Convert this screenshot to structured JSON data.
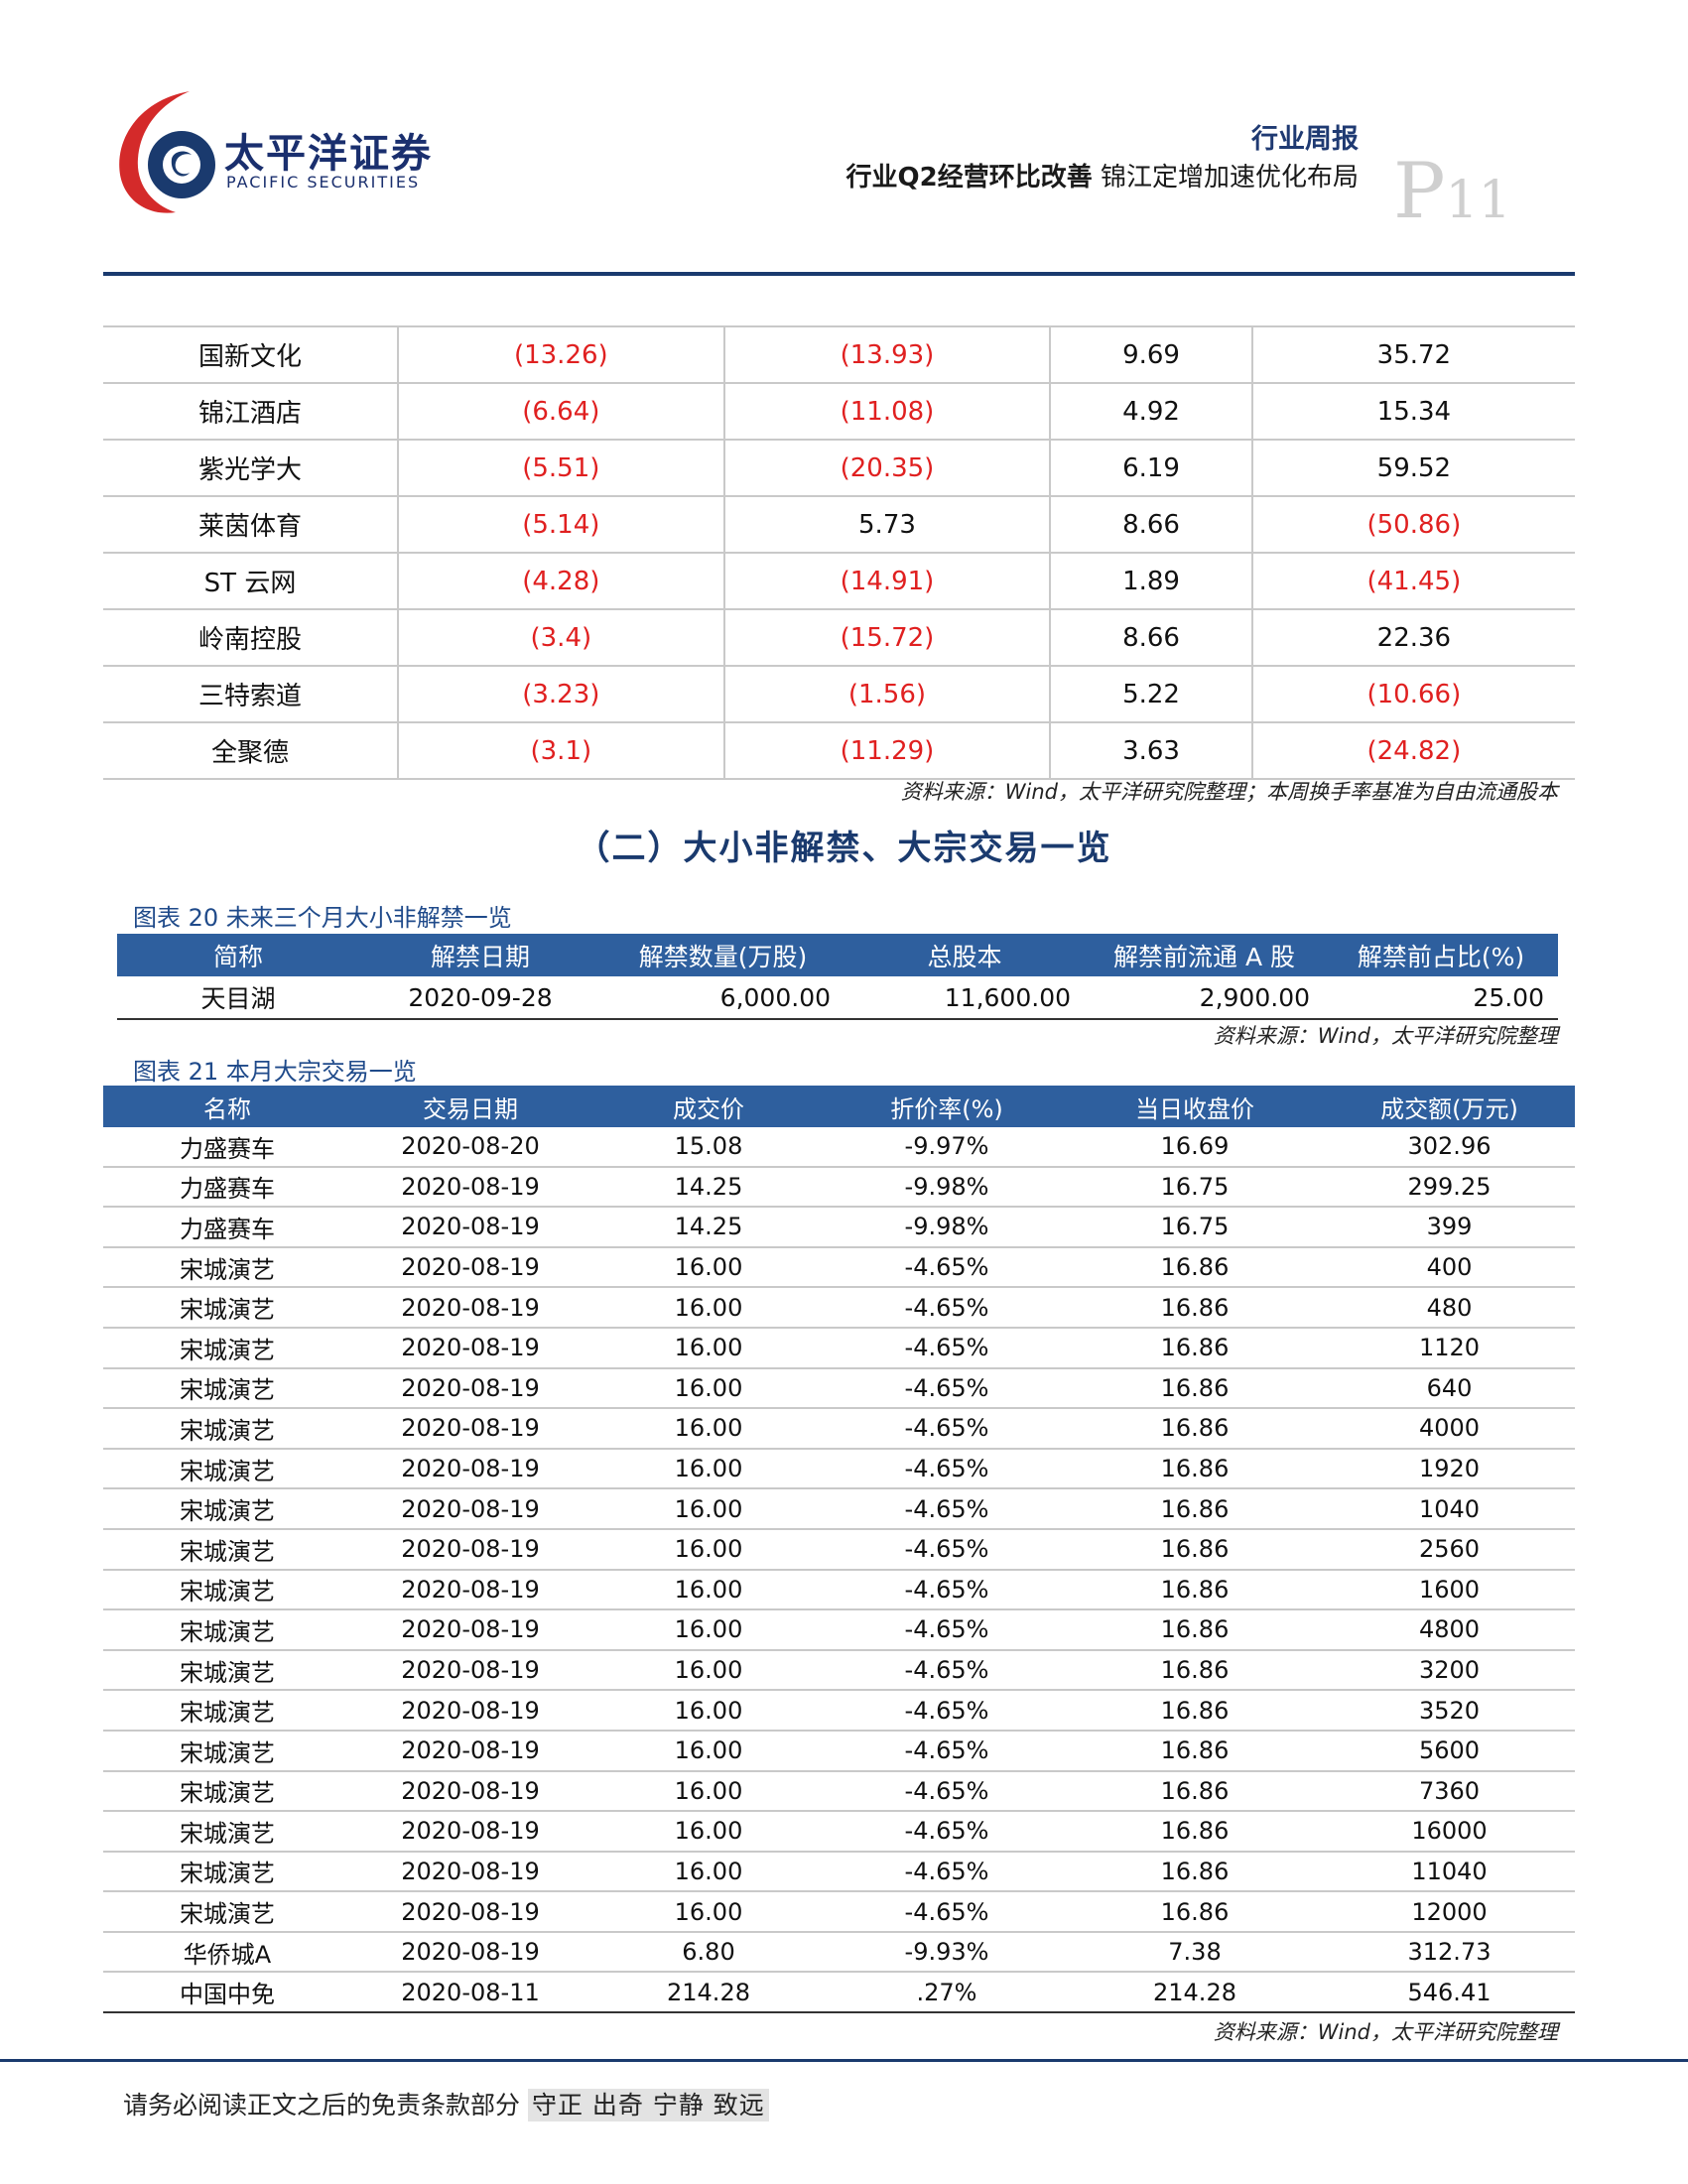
{
  "header": {
    "brand_cn": "太平洋证券",
    "brand_en": "PACIFIC SECURITIES",
    "report_type": "行业周报",
    "title_bold": "行业Q2经营环比改善",
    "title_rest": "锦江定增加速优化布局",
    "page_prefix": "P",
    "page_number": "11"
  },
  "table1": {
    "rows": [
      {
        "name": "国新文化",
        "c1": "(13.26)",
        "c2": "(13.93)",
        "c3": "9.69",
        "c4": "35.72"
      },
      {
        "name": "锦江酒店",
        "c1": "(6.64)",
        "c2": "(11.08)",
        "c3": "4.92",
        "c4": "15.34"
      },
      {
        "name": "紫光学大",
        "c1": "(5.51)",
        "c2": "(20.35)",
        "c3": "6.19",
        "c4": "59.52"
      },
      {
        "name": "莱茵体育",
        "c1": "(5.14)",
        "c2": "5.73",
        "c3": "8.66",
        "c4": "(50.86)"
      },
      {
        "name": "ST 云网",
        "c1": "(4.28)",
        "c2": "(14.91)",
        "c3": "1.89",
        "c4": "(41.45)"
      },
      {
        "name": "岭南控股",
        "c1": "(3.4)",
        "c2": "(15.72)",
        "c3": "8.66",
        "c4": "22.36"
      },
      {
        "name": "三特索道",
        "c1": "(3.23)",
        "c2": "(1.56)",
        "c3": "5.22",
        "c4": "(10.66)"
      },
      {
        "name": "全聚德",
        "c1": "(3.1)",
        "c2": "(11.29)",
        "c3": "3.63",
        "c4": "(24.82)"
      }
    ],
    "source": "资料来源：Wind，太平洋研究院整理；本周换手率基准为自由流通股本"
  },
  "section_title": "（二）大小非解禁、大宗交易一览",
  "table20": {
    "caption": "图表 20 未来三个月大小非解禁一览",
    "headers": [
      "简称",
      "解禁日期",
      "解禁数量(万股)",
      "总股本",
      "解禁前流通 A 股",
      "解禁前占比(%)"
    ],
    "rows": [
      {
        "name": "天目湖",
        "date": "2020-09-28",
        "qty": "6,000.00",
        "total": "11,600.00",
        "float_a": "2,900.00",
        "pct": "25.00"
      }
    ],
    "source": "资料来源：Wind，太平洋研究院整理"
  },
  "table21": {
    "caption": "图表 21 本月大宗交易一览",
    "headers": [
      "名称",
      "交易日期",
      "成交价",
      "折价率(%)",
      "当日收盘价",
      "成交额(万元)"
    ],
    "rows": [
      {
        "name": "力盛赛车",
        "date": "2020-08-20",
        "price": "15.08",
        "discount": "-9.97%",
        "close": "16.69",
        "amount": "302.96"
      },
      {
        "name": "力盛赛车",
        "date": "2020-08-19",
        "price": "14.25",
        "discount": "-9.98%",
        "close": "16.75",
        "amount": "299.25"
      },
      {
        "name": "力盛赛车",
        "date": "2020-08-19",
        "price": "14.25",
        "discount": "-9.98%",
        "close": "16.75",
        "amount": "399"
      },
      {
        "name": "宋城演艺",
        "date": "2020-08-19",
        "price": "16.00",
        "discount": "-4.65%",
        "close": "16.86",
        "amount": "400"
      },
      {
        "name": "宋城演艺",
        "date": "2020-08-19",
        "price": "16.00",
        "discount": "-4.65%",
        "close": "16.86",
        "amount": "480"
      },
      {
        "name": "宋城演艺",
        "date": "2020-08-19",
        "price": "16.00",
        "discount": "-4.65%",
        "close": "16.86",
        "amount": "1120"
      },
      {
        "name": "宋城演艺",
        "date": "2020-08-19",
        "price": "16.00",
        "discount": "-4.65%",
        "close": "16.86",
        "amount": "640"
      },
      {
        "name": "宋城演艺",
        "date": "2020-08-19",
        "price": "16.00",
        "discount": "-4.65%",
        "close": "16.86",
        "amount": "4000"
      },
      {
        "name": "宋城演艺",
        "date": "2020-08-19",
        "price": "16.00",
        "discount": "-4.65%",
        "close": "16.86",
        "amount": "1920"
      },
      {
        "name": "宋城演艺",
        "date": "2020-08-19",
        "price": "16.00",
        "discount": "-4.65%",
        "close": "16.86",
        "amount": "1040"
      },
      {
        "name": "宋城演艺",
        "date": "2020-08-19",
        "price": "16.00",
        "discount": "-4.65%",
        "close": "16.86",
        "amount": "2560"
      },
      {
        "name": "宋城演艺",
        "date": "2020-08-19",
        "price": "16.00",
        "discount": "-4.65%",
        "close": "16.86",
        "amount": "1600"
      },
      {
        "name": "宋城演艺",
        "date": "2020-08-19",
        "price": "16.00",
        "discount": "-4.65%",
        "close": "16.86",
        "amount": "4800"
      },
      {
        "name": "宋城演艺",
        "date": "2020-08-19",
        "price": "16.00",
        "discount": "-4.65%",
        "close": "16.86",
        "amount": "3200"
      },
      {
        "name": "宋城演艺",
        "date": "2020-08-19",
        "price": "16.00",
        "discount": "-4.65%",
        "close": "16.86",
        "amount": "3520"
      },
      {
        "name": "宋城演艺",
        "date": "2020-08-19",
        "price": "16.00",
        "discount": "-4.65%",
        "close": "16.86",
        "amount": "5600"
      },
      {
        "name": "宋城演艺",
        "date": "2020-08-19",
        "price": "16.00",
        "discount": "-4.65%",
        "close": "16.86",
        "amount": "7360"
      },
      {
        "name": "宋城演艺",
        "date": "2020-08-19",
        "price": "16.00",
        "discount": "-4.65%",
        "close": "16.86",
        "amount": "16000"
      },
      {
        "name": "宋城演艺",
        "date": "2020-08-19",
        "price": "16.00",
        "discount": "-4.65%",
        "close": "16.86",
        "amount": "11040"
      },
      {
        "name": "宋城演艺",
        "date": "2020-08-19",
        "price": "16.00",
        "discount": "-4.65%",
        "close": "16.86",
        "amount": "12000"
      },
      {
        "name": "华侨城A",
        "date": "2020-08-19",
        "price": "6.80",
        "discount": "-9.93%",
        "close": "7.38",
        "amount": "312.73"
      },
      {
        "name": "中国中免",
        "date": "2020-08-11",
        "price": "214.28",
        "discount": ".27%",
        "close": "214.28",
        "amount": "546.41"
      }
    ],
    "source": "资料来源：Wind，太平洋研究院整理"
  },
  "footer": {
    "disclaimer": "请务必阅读正文之后的免责条款部分",
    "motto": "守正 出奇 宁静 致远"
  },
  "colors": {
    "navy": "#1a3a6e",
    "header_fill": "#2e5f9e",
    "caption_blue": "#1f4a8a",
    "negative_red": "#e02020",
    "logo_red": "#d42a2a"
  }
}
